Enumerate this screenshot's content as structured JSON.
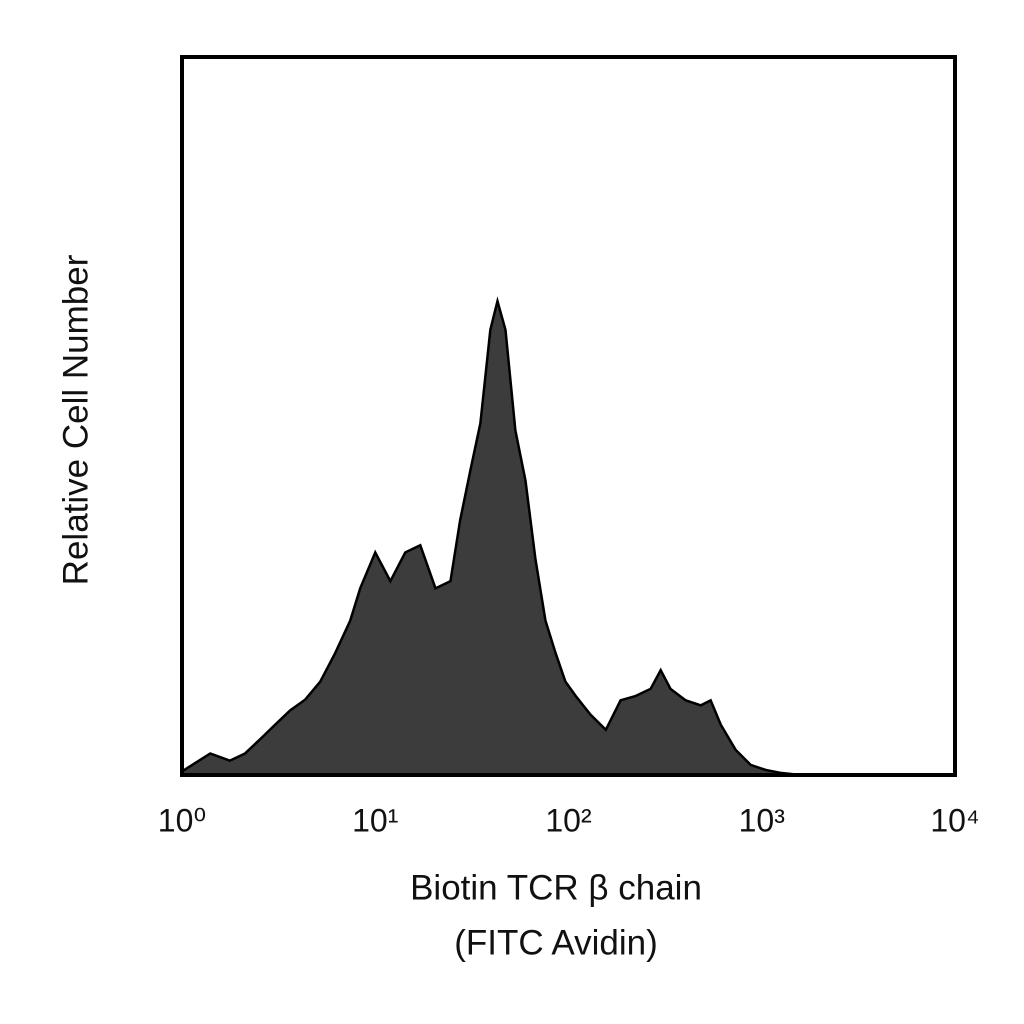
{
  "chart_data": {
    "type": "area",
    "xlabel": [
      "Biotin TCR β chain",
      "(FITC Avidin)"
    ],
    "ylabel": "Relative Cell Number",
    "log_x": true,
    "xlim": [
      1,
      10000
    ],
    "xticks": [
      {
        "value": 1,
        "label": "10⁰"
      },
      {
        "value": 10,
        "label": "10¹"
      },
      {
        "value": 100,
        "label": "10²"
      },
      {
        "value": 1000,
        "label": "10³"
      },
      {
        "value": 10000,
        "label": "10⁴"
      }
    ],
    "ylim": [
      0,
      100
    ],
    "color": "#3c3c3c",
    "x": [
      1,
      1.4,
      1.77,
      2.12,
      2.54,
      3.03,
      3.63,
      4.34,
      5.19,
      6.21,
      7.42,
      8.36,
      10,
      11.97,
      14.3,
      17.1,
      20.5,
      24.5,
      27.5,
      31.1,
      35,
      39.4,
      42.9,
      47.2,
      53.1,
      59.9,
      67.5,
      76,
      85.7,
      96.4,
      109,
      130,
      156,
      186,
      222,
      266,
      300,
      337,
      404,
      483,
      544,
      614,
      733,
      877,
      1050,
      1250,
      1590,
      10000
    ],
    "values": [
      0.5,
      3,
      2,
      3,
      5,
      7,
      9,
      10.5,
      13,
      17,
      21.5,
      26,
      31,
      27,
      31,
      32,
      26,
      27,
      35.5,
      42.5,
      49,
      62,
      66,
      62,
      48,
      41,
      30,
      21.5,
      17,
      13,
      11,
      8.4,
      6.3,
      10.4,
      11,
      12,
      14.6,
      12,
      10.4,
      9.7,
      10.4,
      7,
      3.5,
      1.4,
      0.7,
      0.3,
      0,
      0
    ]
  }
}
